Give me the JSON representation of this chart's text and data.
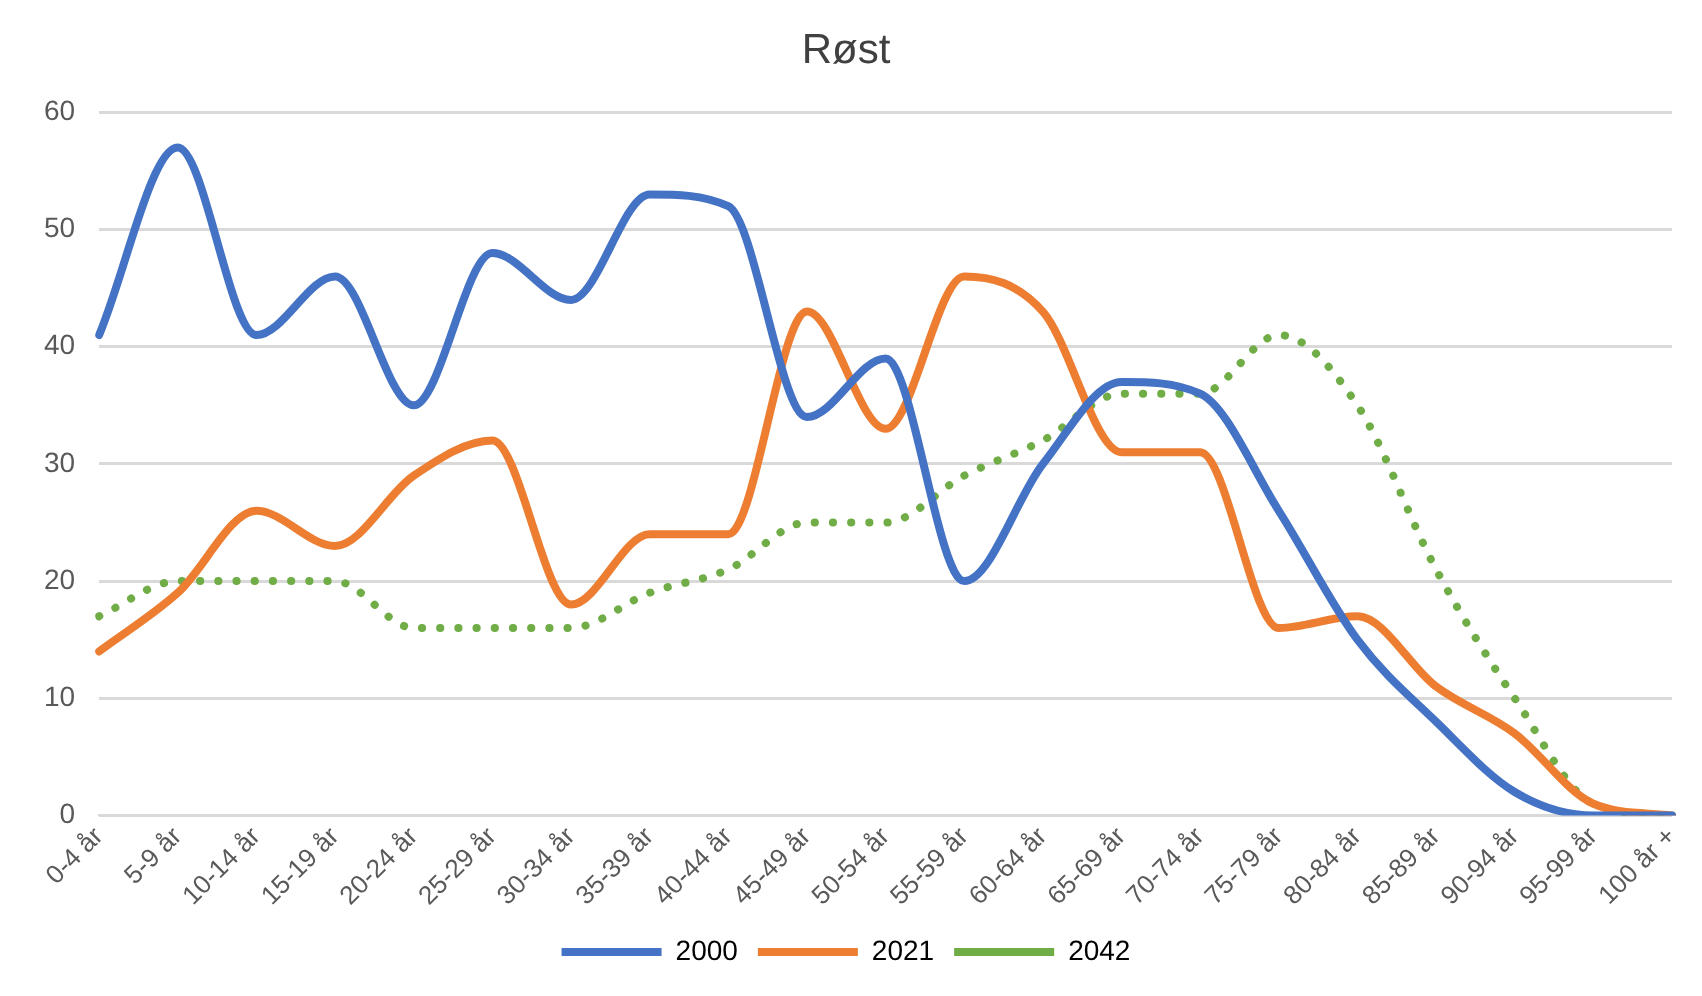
{
  "chart_data": {
    "type": "line",
    "title": "Røst",
    "categories": [
      "0-4 år",
      "5-9 år",
      "10-14 år",
      "15-19 år",
      "20-24 år",
      "25-29 år",
      "30-34 år",
      "35-39 år",
      "40-44 år",
      "45-49 år",
      "50-54 år",
      "55-59 år",
      "60-64 år",
      "65-69 år",
      "70-74 år",
      "75-79 år",
      "80-84 år",
      "85-89 år",
      "90-94 år",
      "95-99 år",
      "100 år +"
    ],
    "series": [
      {
        "name": "2000",
        "color": "#4472c4",
        "line_style": "solid",
        "values": [
          41,
          57,
          41,
          46,
          35,
          48,
          44,
          53,
          52,
          34,
          39,
          20,
          30,
          37,
          36,
          26,
          15,
          8,
          2,
          0,
          0
        ]
      },
      {
        "name": "2021",
        "color": "#ed7d31",
        "line_style": "solid",
        "values": [
          14,
          19,
          26,
          23,
          29,
          32,
          18,
          24,
          24,
          43,
          33,
          46,
          43,
          31,
          31,
          16,
          17,
          11,
          7,
          1,
          0
        ]
      },
      {
        "name": "2042",
        "color": "#70ad47",
        "line_style": "dotted",
        "values": [
          17,
          20,
          20,
          20,
          16,
          16,
          16,
          19,
          21,
          25,
          25,
          29,
          32,
          36,
          36,
          41,
          35,
          21,
          10,
          1,
          0
        ]
      }
    ],
    "ylim": [
      0,
      60
    ],
    "yticks": [
      0,
      10,
      20,
      30,
      40,
      50,
      60
    ],
    "grid": "y",
    "legend": "bottom",
    "marker": "none"
  }
}
